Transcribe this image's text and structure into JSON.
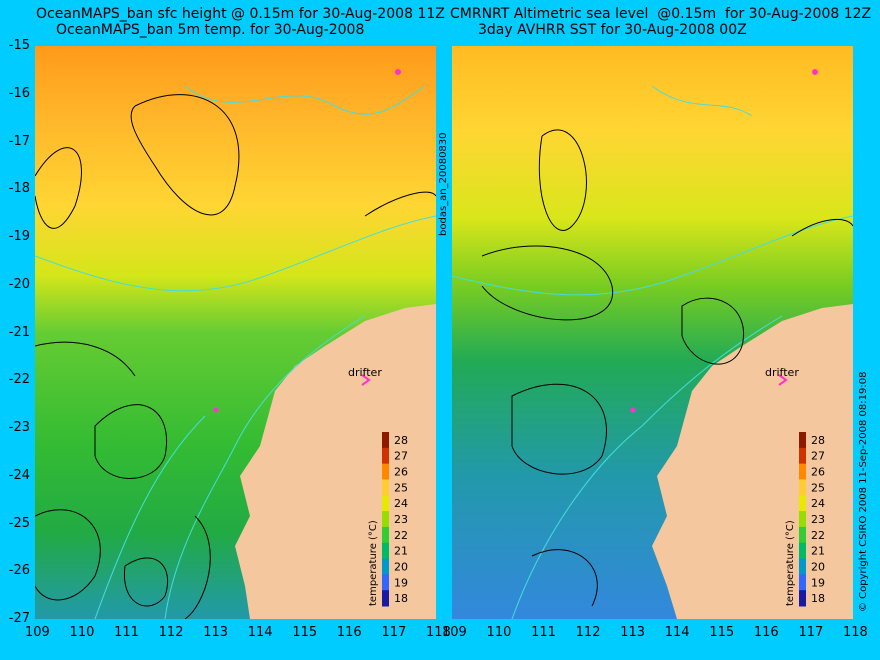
{
  "titles": {
    "left_line1": "OceanMAPS_ban sfc height @ 0.15m for 30-Aug-2008 11Z",
    "left_line2": "OceanMAPS_ban 5m temp. for 30-Aug-2008",
    "right_line1": "CMRNRT Altimetric sea level  @0.15m  for 30-Aug-2008 12Z",
    "right_line2": "3day AVHRR SST for 30-Aug-2008 00Z"
  },
  "axes": {
    "lon_ticks": [
      "109",
      "110",
      "111",
      "112",
      "113",
      "114",
      "115",
      "116",
      "117",
      "118"
    ],
    "lat_ticks": [
      "-15",
      "-16",
      "-17",
      "-18",
      "-19",
      "-20",
      "-21",
      "-22",
      "-23",
      "-24",
      "-25",
      "-26",
      "-27"
    ],
    "lon_range": [
      109,
      118
    ],
    "lat_range": [
      -27,
      -15
    ]
  },
  "colorbar": {
    "label": "temperature (°C)",
    "ticks": [
      "28",
      "27",
      "26",
      "25",
      "24",
      "23",
      "22",
      "21",
      "20",
      "19",
      "18"
    ],
    "colors": [
      "#8b1a00",
      "#cc3300",
      "#ff8800",
      "#ffcc33",
      "#e8e800",
      "#99dd00",
      "#33cc33",
      "#00bb66",
      "#0099cc",
      "#3366ff",
      "#1a1aa0"
    ]
  },
  "drifter": {
    "label": "drifter"
  },
  "side_text": {
    "middle": "bodas_an_20080830",
    "right": "© Copyright CSIRO 2008  11-Sep-2008 08:19:08"
  },
  "colors": {
    "background": "#00ccff",
    "land": "#f5c79e",
    "marker": "#ff33cc"
  }
}
